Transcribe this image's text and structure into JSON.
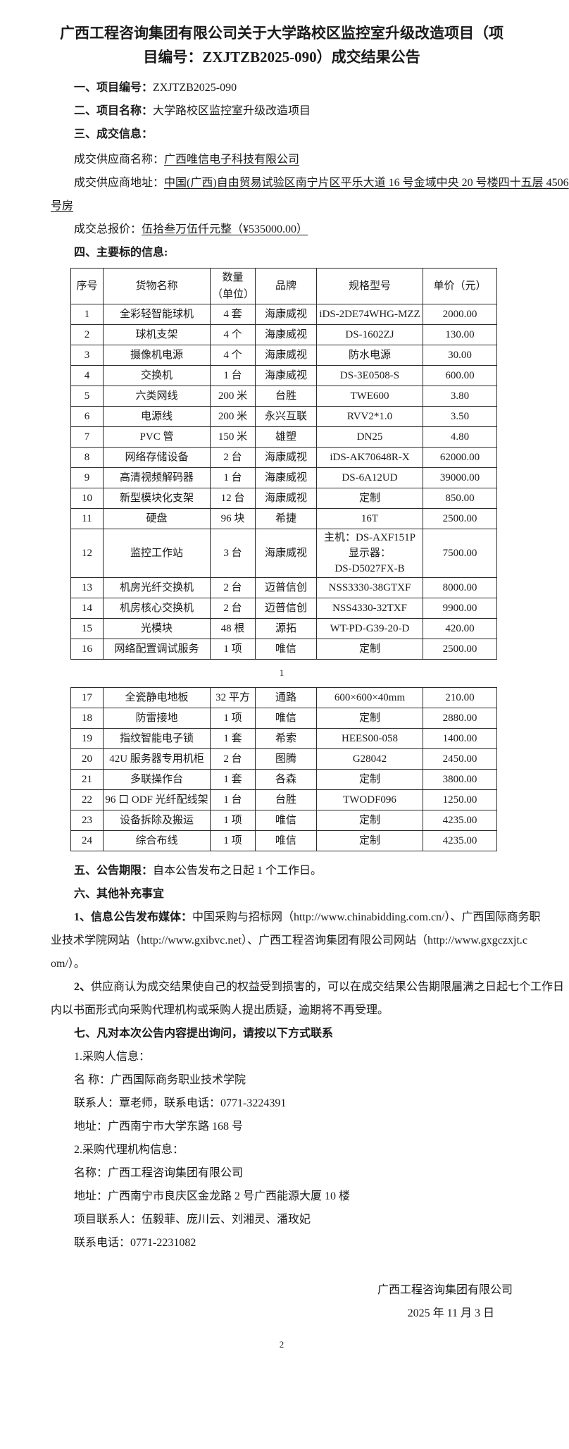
{
  "doc": {
    "title_lines": [
      "广西工程咨询集团有限公司关于大学路校区监控室升级改造项目（项",
      "目编号：ZXJTZB2025-090）成交结果公告"
    ],
    "item1_label": "一、项目编号：",
    "item1_value": "ZXJTZB2025-090",
    "item2_label": "二、项目名称：",
    "item2_value": "大学路校区监控室升级改造项目",
    "item3_label": "三、成交信息：",
    "supplier_name_label": "成交供应商名称：",
    "supplier_name": "广西唯信电子科技有限公司",
    "supplier_addr_label": "成交供应商地址：",
    "supplier_addr_line1": "中国(广西)自由贸易试验区南宁片区平乐大道 16 号金域中央 20 号楼四十五层 4506",
    "supplier_addr_line2": "号房",
    "total_label": "成交总报价：",
    "total_value": "伍拾叁万伍仟元整（¥535000.00）",
    "section4_heading": "四、主要标的信息:",
    "table": {
      "headers": [
        "序号",
        "货物名称",
        "数量\n（单位）",
        "品牌",
        "规格型号",
        "单价（元）"
      ],
      "rows1": [
        {
          "no": "1",
          "name": "全彩轻智能球机",
          "qty": "4 套",
          "brand": "海康威视",
          "spec": "iDS-2DE74WHG-MZZ",
          "price": "2000.00"
        },
        {
          "no": "2",
          "name": "球机支架",
          "qty": "4 个",
          "brand": "海康威视",
          "spec": "DS-1602ZJ",
          "price": "130.00"
        },
        {
          "no": "3",
          "name": "摄像机电源",
          "qty": "4 个",
          "brand": "海康威视",
          "spec": "防水电源",
          "price": "30.00"
        },
        {
          "no": "4",
          "name": "交换机",
          "qty": "1 台",
          "brand": "海康威视",
          "spec": "DS-3E0508-S",
          "price": "600.00"
        },
        {
          "no": "5",
          "name": "六类网线",
          "qty": "200 米",
          "brand": "台胜",
          "spec": "TWE600",
          "price": "3.80"
        },
        {
          "no": "6",
          "name": "电源线",
          "qty": "200 米",
          "brand": "永兴互联",
          "spec": "RVV2*1.0",
          "price": "3.50"
        },
        {
          "no": "7",
          "name": "PVC 管",
          "qty": "150 米",
          "brand": "雄塑",
          "spec": "DN25",
          "price": "4.80"
        },
        {
          "no": "8",
          "name": "网络存储设备",
          "qty": "2 台",
          "brand": "海康威视",
          "spec": "iDS-AK70648R-X",
          "price": "62000.00"
        },
        {
          "no": "9",
          "name": "高清视频解码器",
          "qty": "1 台",
          "brand": "海康威视",
          "spec": "DS-6A12UD",
          "price": "39000.00"
        },
        {
          "no": "10",
          "name": "新型模块化支架",
          "qty": "12 台",
          "brand": "海康威视",
          "spec": "定制",
          "price": "850.00"
        },
        {
          "no": "11",
          "name": "硬盘",
          "qty": "96 块",
          "brand": "希捷",
          "spec": "16T",
          "price": "2500.00"
        },
        {
          "no": "12",
          "name": "监控工作站",
          "qty": "3 台",
          "brand": "海康威视",
          "spec": "主机：DS-AXF151P\n显示器：\nDS-D5027FX-B",
          "price": "7500.00"
        },
        {
          "no": "13",
          "name": "机房光纤交换机",
          "qty": "2 台",
          "brand": "迈普信创",
          "spec": "NSS3330-38GTXF",
          "price": "8000.00"
        },
        {
          "no": "14",
          "name": "机房核心交换机",
          "qty": "2 台",
          "brand": "迈普信创",
          "spec": "NSS4330-32TXF",
          "price": "9900.00"
        },
        {
          "no": "15",
          "name": "光模块",
          "qty": "48 根",
          "brand": "源拓",
          "spec": "WT-PD-G39-20-D",
          "price": "420.00"
        },
        {
          "no": "16",
          "name": "网络配置调试服务",
          "qty": "1 项",
          "brand": "唯信",
          "spec": "定制",
          "price": "2500.00"
        }
      ],
      "rows2": [
        {
          "no": "17",
          "name": "全瓷静电地板",
          "qty": "32 平方",
          "brand": "通路",
          "spec": "600×600×40mm",
          "price": "210.00"
        },
        {
          "no": "18",
          "name": "防雷接地",
          "qty": "1 项",
          "brand": "唯信",
          "spec": "定制",
          "price": "2880.00"
        },
        {
          "no": "19",
          "name": "指纹智能电子锁",
          "qty": "1 套",
          "brand": "希索",
          "spec": "HEES00-058",
          "price": "1400.00"
        },
        {
          "no": "20",
          "name": "42U 服务器专用机柜",
          "qty": "2 台",
          "brand": "图腾",
          "spec": "G28042",
          "price": "2450.00"
        },
        {
          "no": "21",
          "name": "多联操作台",
          "qty": "1 套",
          "brand": "各森",
          "spec": "定制",
          "price": "3800.00"
        },
        {
          "no": "22",
          "name": "96 口 ODF 光纤配线架",
          "qty": "1 台",
          "brand": "台胜",
          "spec": "TWODF096",
          "price": "1250.00"
        },
        {
          "no": "23",
          "name": "设备拆除及搬运",
          "qty": "1 项",
          "brand": "唯信",
          "spec": "定制",
          "price": "4235.00"
        },
        {
          "no": "24",
          "name": "综合布线",
          "qty": "1 项",
          "brand": "唯信",
          "spec": "定制",
          "price": "4235.00"
        }
      ]
    },
    "page1_number": "1",
    "page2_number": "2",
    "section5_label": "五、公告期限：",
    "section5_text": "自本公告发布之日起 1 个工作日。",
    "section6_heading": "六、其他补充事宜",
    "media_prefix": "1、信息公告发布媒体：",
    "media_line1": "中国采购与招标网（http://www.chinabidding.com.cn/）、广西国际商务职",
    "media_line2": "业技术学院网站（http://www.gxibvc.net）、广西工程咨询集团有限公司网站（http://www.gxgczxjt.c",
    "media_line3": "om/）。",
    "dispute_prefix": "2、",
    "dispute_line1": "供应商认为成交结果使自己的权益受到损害的，可以在成交结果公告期限届满之日起七个工作日",
    "dispute_line2": "内以书面形式向采购代理机构或采购人提出质疑，逾期将不再受理。",
    "section7_heading": "七、凡对本次公告内容提出询问，请按以下方式联系",
    "contacts": [
      "1.采购人信息：",
      "名 称：广西国际商务职业技术学院",
      "联系人：覃老师，联系电话：0771-3224391",
      "地址：广西南宁市大学东路 168 号",
      "2.采购代理机构信息：",
      "名称：广西工程咨询集团有限公司",
      "地址：广西南宁市良庆区金龙路 2 号广西能源大厦 10 楼",
      "项目联系人：伍毅菲、庞川云、刘湘灵、潘玫妃",
      "联系电话：0771-2231082"
    ],
    "signature_org": "广西工程咨询集团有限公司",
    "signature_date": "2025 年 11 月 3 日"
  }
}
